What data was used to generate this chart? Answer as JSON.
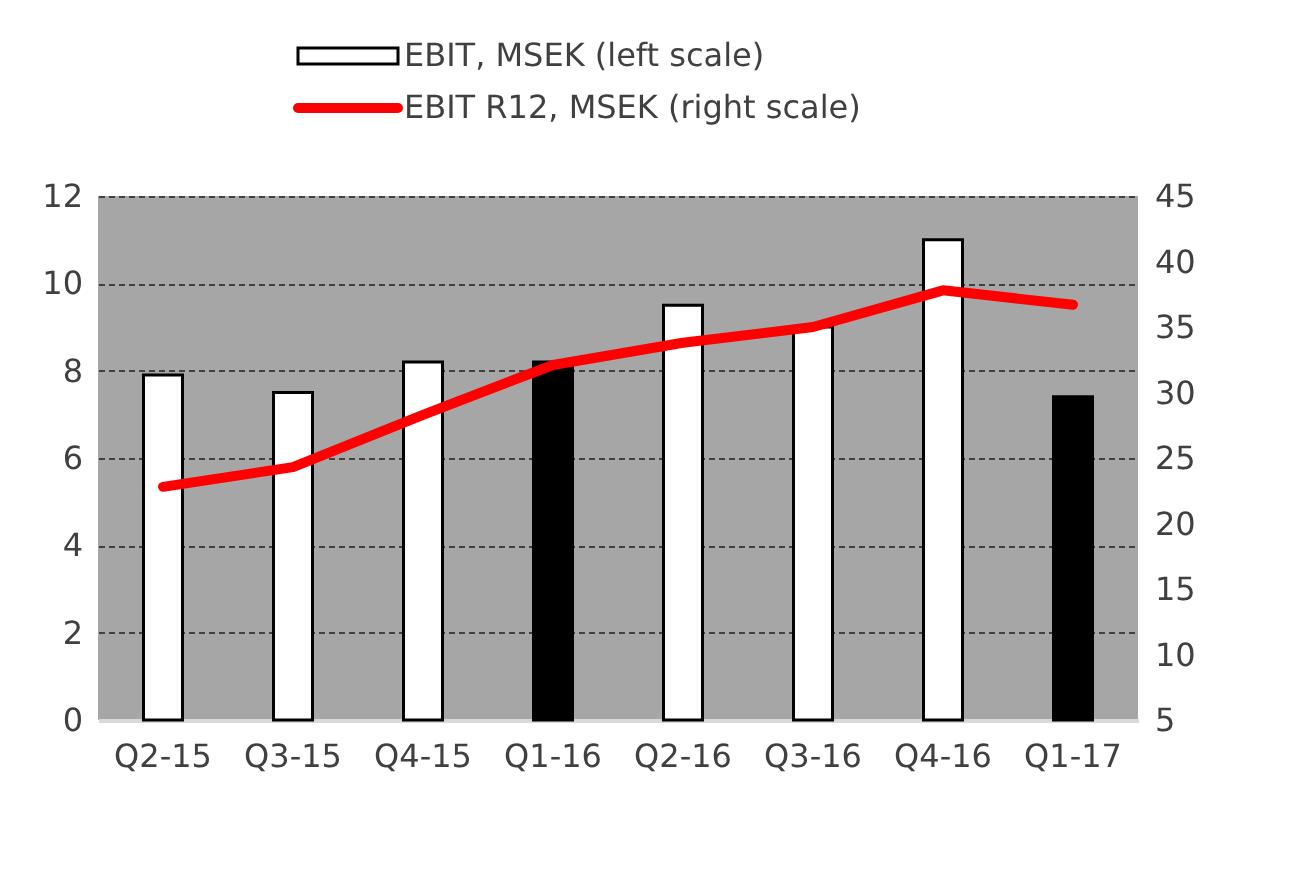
{
  "chart_data": {
    "type": "bar",
    "categories": [
      "Q2-15",
      "Q3-15",
      "Q4-15",
      "Q1-16",
      "Q2-16",
      "Q3-16",
      "Q4-16",
      "Q1-17"
    ],
    "series": [
      {
        "name": "EBIT, MSEK (left scale)",
        "color": "#ffffff",
        "colors": [
          "#ffffff",
          "#ffffff",
          "#ffffff",
          "#000000",
          "#ffffff",
          "#ffffff",
          "#ffffff",
          "#000000"
        ],
        "values": [
          7.9,
          7.5,
          8.2,
          8.2,
          9.5,
          9.0,
          11.0,
          7.4
        ]
      },
      {
        "name": "EBIT R12, MSEK (right scale)",
        "type": "line",
        "axis": "y2",
        "color": "#ff0000",
        "values": [
          22.8,
          24.3,
          28.3,
          32.1,
          33.8,
          35.0,
          37.8,
          36.7
        ]
      }
    ],
    "ylim": [
      0,
      12
    ],
    "yticks": [
      0,
      2,
      4,
      6,
      8,
      10,
      12
    ],
    "y2lim": [
      5,
      45
    ],
    "y2ticks": [
      5,
      10,
      15,
      20,
      25,
      30,
      35,
      40,
      45
    ],
    "grid": "y",
    "legend": "top"
  }
}
